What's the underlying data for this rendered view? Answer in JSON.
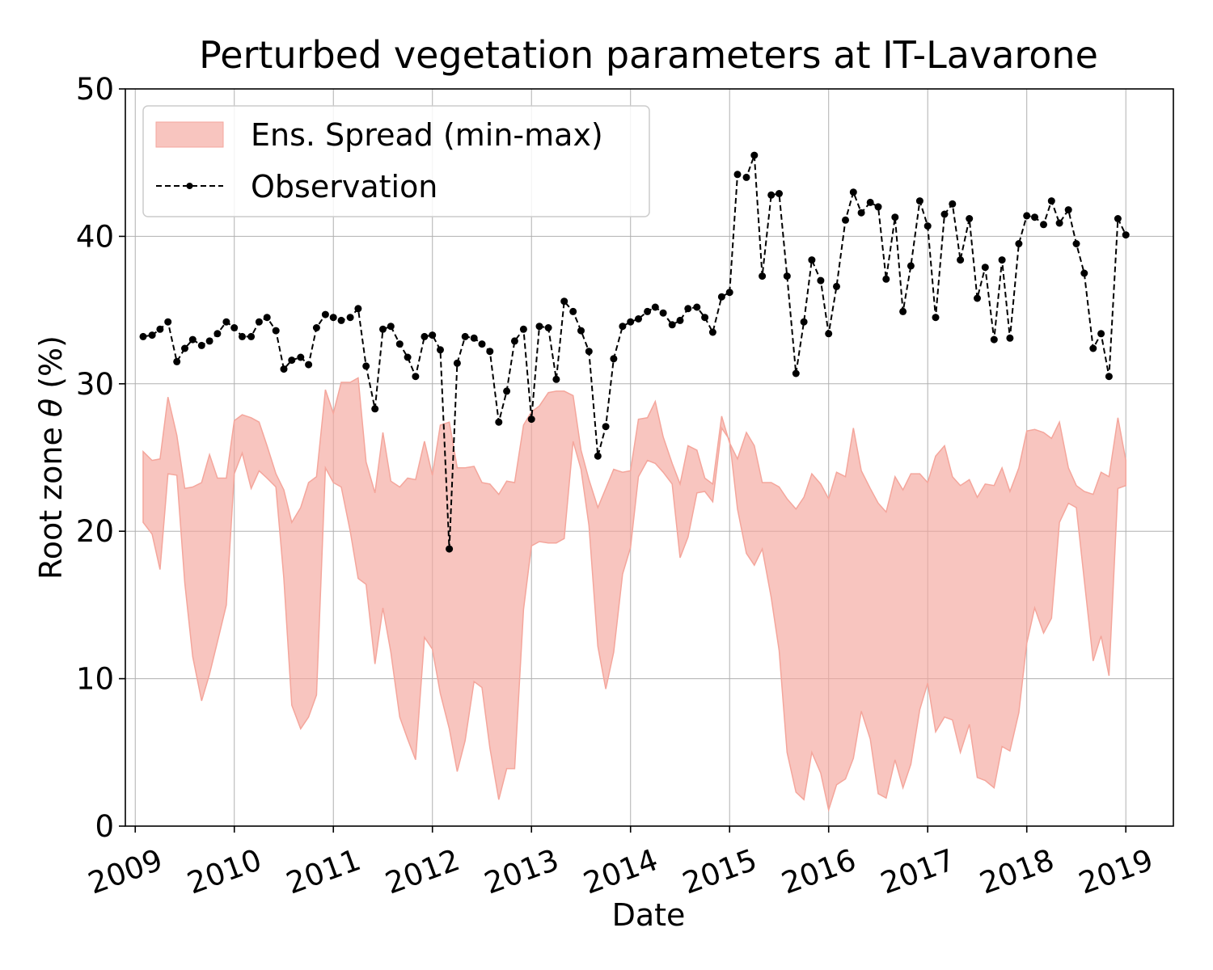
{
  "chart_data": {
    "type": "line",
    "title": "Perturbed vegetation parameters at IT-Lavarone",
    "xlabel": "Date",
    "ylabel": "Root zone θ  (%)",
    "xlim": [
      2008.9,
      2019.48
    ],
    "ylim": [
      0,
      50
    ],
    "xticks": [
      "2009",
      "2010",
      "2011",
      "2012",
      "2013",
      "2014",
      "2015",
      "2016",
      "2017",
      "2018",
      "2019"
    ],
    "yticks": [
      0,
      10,
      20,
      30,
      40,
      50
    ],
    "grid": true,
    "legend": {
      "placement": "upper left",
      "entries": [
        "Ens. Spread (min-max)",
        "Observation"
      ]
    },
    "colors": {
      "spread_fill": "#f4a69c",
      "spread_edge": "#f4a69c",
      "observation": "#000000"
    },
    "x": [
      2009.08,
      2009.17,
      2009.25,
      2009.33,
      2009.42,
      2009.5,
      2009.58,
      2009.67,
      2009.75,
      2009.83,
      2009.92,
      2010.0,
      2010.08,
      2010.17,
      2010.25,
      2010.33,
      2010.42,
      2010.5,
      2010.58,
      2010.67,
      2010.75,
      2010.83,
      2010.92,
      2011.0,
      2011.08,
      2011.17,
      2011.25,
      2011.33,
      2011.42,
      2011.5,
      2011.58,
      2011.67,
      2011.75,
      2011.83,
      2011.92,
      2012.0,
      2012.08,
      2012.17,
      2012.25,
      2012.33,
      2012.42,
      2012.5,
      2012.58,
      2012.67,
      2012.75,
      2012.83,
      2012.92,
      2013.0,
      2013.08,
      2013.17,
      2013.25,
      2013.33,
      2013.42,
      2013.5,
      2013.58,
      2013.67,
      2013.75,
      2013.83,
      2013.92,
      2014.0,
      2014.08,
      2014.17,
      2014.25,
      2014.33,
      2014.42,
      2014.5,
      2014.58,
      2014.67,
      2014.75,
      2014.83,
      2014.92,
      2015.0,
      2015.08,
      2015.17,
      2015.25,
      2015.33,
      2015.42,
      2015.5,
      2015.58,
      2015.67,
      2015.75,
      2015.83,
      2015.92,
      2016.0,
      2016.08,
      2016.17,
      2016.25,
      2016.33,
      2016.42,
      2016.5,
      2016.58,
      2016.67,
      2016.75,
      2016.83,
      2016.92,
      2017.0,
      2017.08,
      2017.17,
      2017.25,
      2017.33,
      2017.42,
      2017.5,
      2017.58,
      2017.67,
      2017.75,
      2017.83,
      2017.92,
      2018.0,
      2018.08,
      2018.17,
      2018.25,
      2018.33,
      2018.42,
      2018.5,
      2018.58,
      2018.67,
      2018.75,
      2018.83,
      2018.92,
      2019.0
    ],
    "series": [
      {
        "name": "Observation",
        "values": [
          33.2,
          33.3,
          33.7,
          34.2,
          31.5,
          32.4,
          33.0,
          32.6,
          32.9,
          33.4,
          34.2,
          33.8,
          33.2,
          33.2,
          34.2,
          34.5,
          33.6,
          31.0,
          31.6,
          31.8,
          31.3,
          33.8,
          34.7,
          34.5,
          34.3,
          34.5,
          35.1,
          31.2,
          28.3,
          33.7,
          33.9,
          32.7,
          31.8,
          30.5,
          33.2,
          33.3,
          32.3,
          18.8,
          31.4,
          33.2,
          33.1,
          32.7,
          32.2,
          27.4,
          29.5,
          32.9,
          33.7,
          27.6,
          33.9,
          33.8,
          30.3,
          35.6,
          34.9,
          33.6,
          32.2,
          25.1,
          27.1,
          31.7,
          33.9,
          34.2,
          34.4,
          34.9,
          35.2,
          34.8,
          34.0,
          34.3,
          35.1,
          35.2,
          34.5,
          33.5,
          35.9,
          36.2,
          44.2,
          44.0,
          45.5,
          37.3,
          42.8,
          42.9,
          37.3,
          30.7,
          34.2,
          38.4,
          37.0,
          33.4,
          36.6,
          41.1,
          43.0,
          41.6,
          42.3,
          42.0,
          37.1,
          41.3,
          34.9,
          38.0,
          42.4,
          40.7,
          34.5,
          41.5,
          42.2,
          38.4,
          41.2,
          35.8,
          37.9,
          33.0,
          38.4,
          33.1,
          39.5,
          41.4,
          41.3,
          40.8,
          42.4,
          40.9,
          41.8,
          39.5,
          37.5,
          32.4,
          33.4,
          30.5,
          41.2,
          40.1
        ]
      },
      {
        "name": "Ens. Spread (min-max) max",
        "values": [
          25.4,
          24.8,
          24.9,
          29.1,
          26.5,
          22.9,
          23.0,
          23.3,
          25.2,
          23.6,
          23.6,
          27.5,
          27.9,
          27.7,
          27.4,
          25.8,
          23.9,
          22.8,
          20.6,
          21.6,
          23.3,
          23.7,
          29.6,
          28.0,
          30.1,
          30.1,
          30.4,
          24.7,
          22.6,
          26.7,
          23.4,
          23.0,
          23.6,
          23.5,
          26.1,
          23.8,
          27.2,
          27.4,
          24.3,
          24.3,
          24.4,
          23.3,
          23.2,
          22.5,
          23.4,
          23.3,
          27.2,
          28.1,
          28.5,
          29.4,
          29.5,
          29.5,
          29.2,
          25.5,
          23.5,
          21.6,
          22.9,
          24.2,
          24.0,
          24.1,
          27.6,
          27.7,
          28.8,
          26.4,
          24.6,
          23.2,
          25.8,
          25.5,
          23.6,
          23.2,
          27.8,
          26.0,
          24.9,
          26.7,
          25.8,
          23.3,
          23.3,
          23.0,
          22.2,
          21.5,
          22.3,
          23.9,
          23.2,
          22.2,
          24.0,
          23.7,
          27.0,
          24.1,
          22.9,
          21.9,
          21.3,
          23.7,
          22.8,
          23.9,
          23.9,
          23.3,
          25.1,
          25.8,
          23.7,
          23.1,
          23.5,
          22.3,
          23.2,
          23.1,
          24.3,
          22.7,
          24.3,
          26.8,
          26.9,
          26.7,
          26.3,
          27.4,
          24.3,
          23.1,
          22.7,
          22.5,
          24.0,
          23.7,
          27.7,
          24.8
        ]
      },
      {
        "name": "Ens. Spread (min-max) min",
        "values": [
          20.6,
          19.8,
          17.4,
          23.9,
          23.8,
          16.5,
          11.5,
          8.5,
          10.3,
          12.5,
          15.0,
          23.9,
          25.3,
          22.9,
          24.1,
          23.6,
          23.0,
          16.8,
          8.2,
          6.6,
          7.4,
          8.9,
          24.3,
          23.3,
          23.0,
          20.0,
          16.8,
          16.4,
          11.0,
          14.8,
          11.8,
          7.4,
          5.9,
          4.5,
          12.8,
          12.0,
          9.0,
          6.6,
          3.7,
          5.8,
          9.8,
          9.4,
          5.3,
          1.8,
          3.9,
          3.9,
          14.7,
          19.0,
          19.3,
          19.2,
          19.2,
          19.5,
          26.1,
          24.2,
          20.4,
          12.2,
          9.3,
          11.8,
          17.1,
          18.9,
          23.7,
          24.8,
          24.6,
          24.0,
          23.2,
          18.2,
          19.6,
          22.6,
          22.7,
          22.0,
          27.0,
          26.2,
          21.5,
          18.5,
          17.7,
          18.8,
          15.5,
          11.9,
          5.0,
          2.3,
          1.8,
          5.0,
          3.6,
          1.1,
          2.8,
          3.2,
          4.6,
          7.8,
          5.9,
          2.2,
          1.9,
          4.5,
          2.6,
          4.2,
          7.9,
          9.7,
          6.4,
          7.4,
          7.2,
          5.0,
          6.9,
          3.3,
          3.1,
          2.6,
          5.4,
          5.1,
          7.7,
          12.4,
          14.8,
          13.1,
          14.1,
          20.6,
          21.9,
          21.6,
          16.7,
          11.2,
          12.9,
          10.2,
          22.9,
          23.1
        ]
      }
    ]
  }
}
